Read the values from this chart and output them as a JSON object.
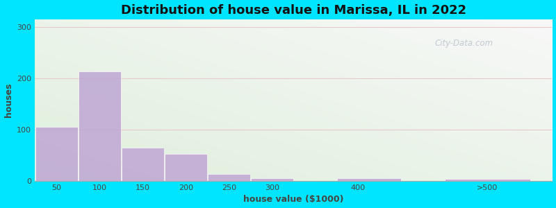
{
  "title": "Distribution of house value in Marissa, IL in 2022",
  "xlabel": "house value ($1000)",
  "ylabel": "houses",
  "bar_color": "#c0a8d4",
  "bar_edgecolor": "#ffffff",
  "bar_heights": [
    105,
    213,
    65,
    53,
    13,
    5,
    0,
    5,
    4
  ],
  "bar_lefts": [
    25,
    75,
    125,
    175,
    225,
    275,
    325,
    375,
    500
  ],
  "bar_widths": [
    50,
    50,
    50,
    50,
    50,
    50,
    50,
    75,
    100
  ],
  "xtick_positions": [
    50,
    100,
    150,
    200,
    250,
    300,
    400,
    550
  ],
  "xtick_labels": [
    "50",
    "100",
    "150",
    "200",
    "250",
    "300",
    "400",
    ">500"
  ],
  "ytick_positions": [
    0,
    100,
    200,
    300
  ],
  "ytick_labels": [
    "0",
    "100",
    "200",
    "300"
  ],
  "ylim": [
    0,
    315
  ],
  "xlim": [
    25,
    625
  ],
  "bg_outer": "#00e5ff",
  "bg_top_left": "#dff0dc",
  "bg_bottom_right": "#f8f8f8",
  "grid_color": "#e8c8c8",
  "title_fontsize": 13,
  "axis_label_fontsize": 9,
  "tick_fontsize": 8,
  "watermark_text": "City-Data.com"
}
